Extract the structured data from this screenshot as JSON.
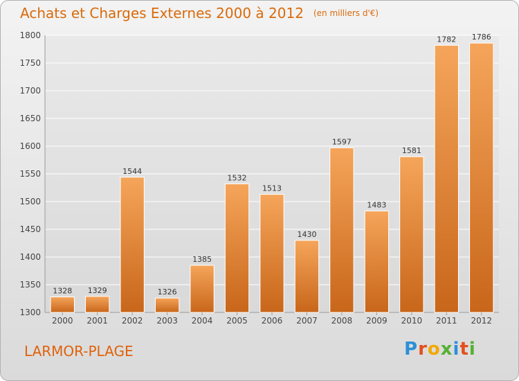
{
  "header": {
    "title": "Achats et Charges Externes 2000 à 2012",
    "subtitle": "(en milliers d'€)"
  },
  "footer": {
    "city": "LARMOR-PLAGE",
    "logo_letters": [
      "P",
      "r",
      "o",
      "x",
      "i",
      "t",
      "i"
    ],
    "logo_colors": [
      "#2e8fd6",
      "#e34e1d",
      "#f2a800",
      "#54b133",
      "#2e8fd6",
      "#e34e1d",
      "#54b133"
    ]
  },
  "chart_data": {
    "type": "bar",
    "title": "Achats et Charges Externes 2000 à 2012",
    "subtitle": "(en milliers d'€)",
    "categories": [
      "2000",
      "2001",
      "2002",
      "2003",
      "2004",
      "2005",
      "2006",
      "2007",
      "2008",
      "2009",
      "2010",
      "2011",
      "2012"
    ],
    "values": [
      1328,
      1329,
      1544,
      1326,
      1385,
      1532,
      1513,
      1430,
      1597,
      1483,
      1581,
      1782,
      1786
    ],
    "ylim": [
      1300,
      1800
    ],
    "yticks": [
      1300,
      1350,
      1400,
      1450,
      1500,
      1550,
      1600,
      1650,
      1700,
      1750,
      1800
    ],
    "grid": true,
    "bar_color_top": "#f5a55a",
    "bar_color_bottom": "#c8661a"
  }
}
